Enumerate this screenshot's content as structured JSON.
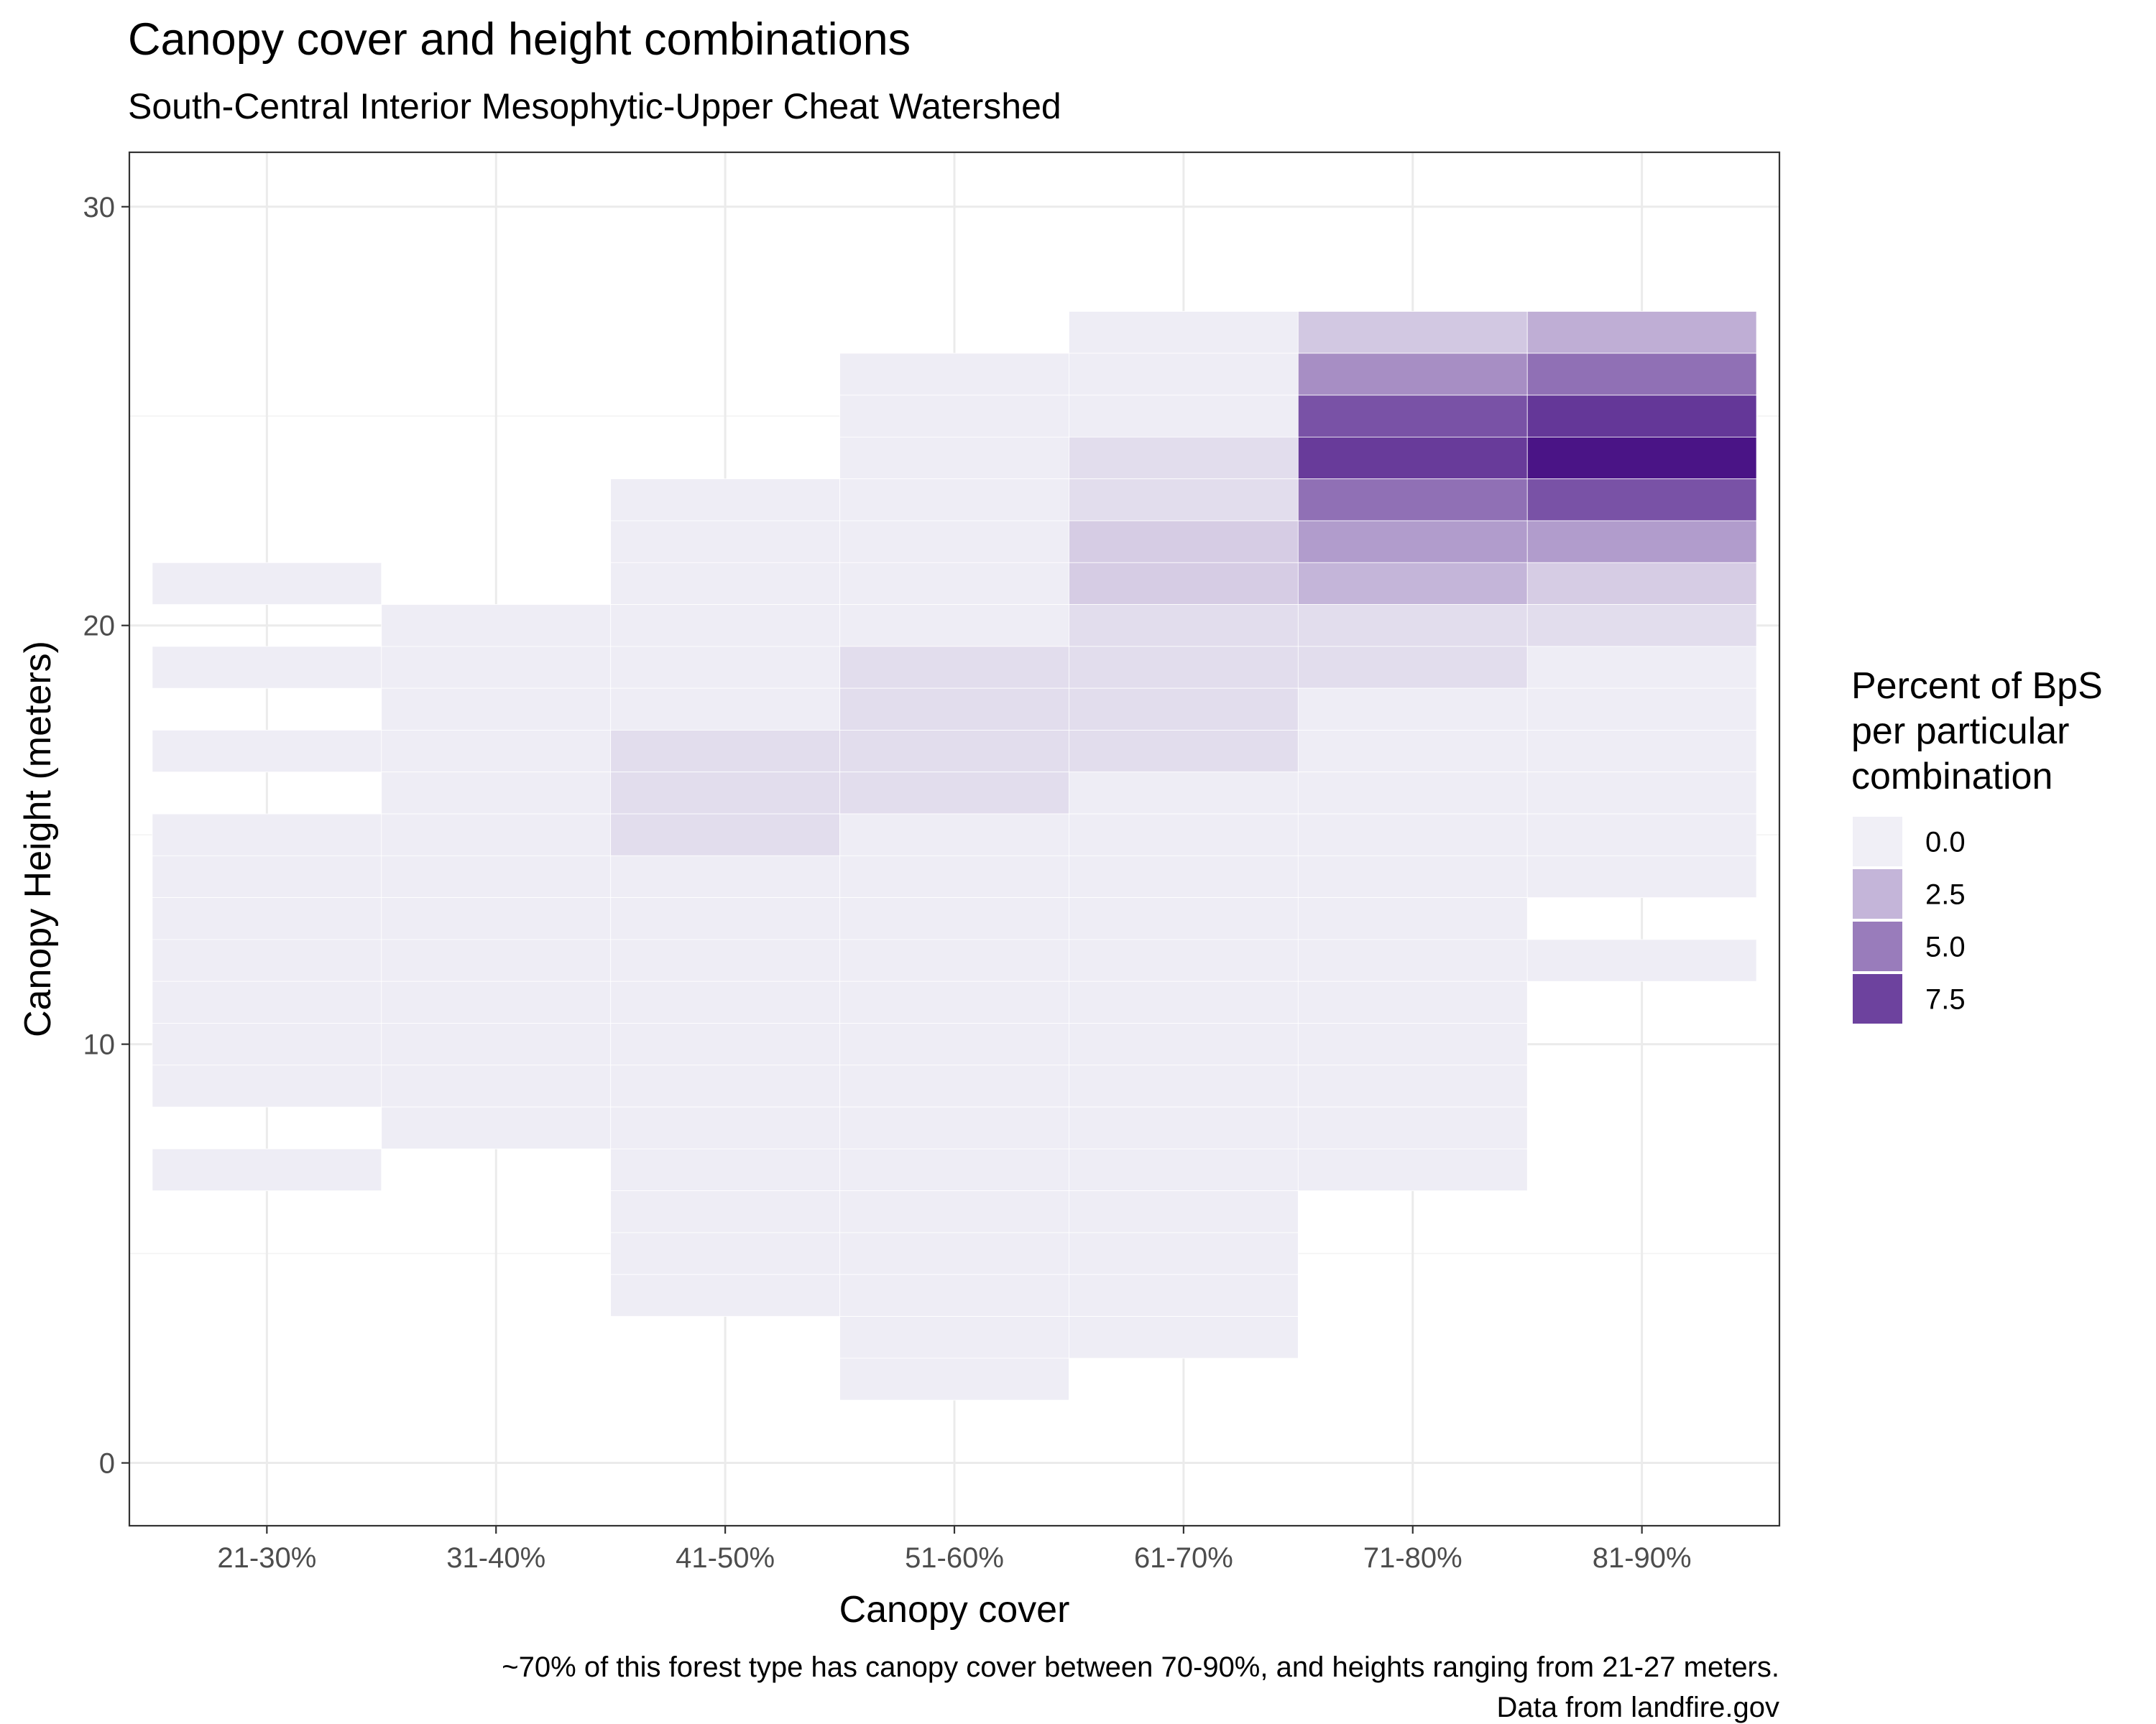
{
  "chart_data": {
    "type": "heatmap",
    "title": "Canopy cover and height combinations",
    "subtitle": "South-Central Interior Mesophytic-Upper Cheat Watershed",
    "xlabel": "Canopy cover",
    "ylabel": "Canopy Height (meters)",
    "categories": [
      "21-30%",
      "31-40%",
      "41-50%",
      "51-60%",
      "61-70%",
      "71-80%",
      "81-90%"
    ],
    "ylim": [
      -1.5,
      31.3
    ],
    "y_ticks": [
      0,
      10,
      20,
      30
    ],
    "grid": true,
    "color_scale": {
      "palette": "Purples",
      "low_color": "#f0eff6",
      "high_color": "#4a1486",
      "min": 0,
      "max": 9.5
    },
    "legend": {
      "title": [
        "Percent of BpS",
        "per particular",
        "combination"
      ],
      "position": "right",
      "breaks": [
        0.0,
        2.5,
        5.0,
        7.5
      ],
      "labels": [
        "0.0",
        "2.5",
        "5.0",
        "7.5"
      ]
    },
    "cells": [
      {
        "x": "21-30%",
        "y": 21,
        "value": 0.1
      },
      {
        "x": "21-30%",
        "y": 19,
        "value": 0.1
      },
      {
        "x": "21-30%",
        "y": 17,
        "value": 0.1
      },
      {
        "x": "21-30%",
        "y": 15,
        "value": 0.1
      },
      {
        "x": "21-30%",
        "y": 14,
        "value": 0.1
      },
      {
        "x": "21-30%",
        "y": 13,
        "value": 0.1
      },
      {
        "x": "21-30%",
        "y": 12,
        "value": 0.1
      },
      {
        "x": "21-30%",
        "y": 11,
        "value": 0.1
      },
      {
        "x": "21-30%",
        "y": 10,
        "value": 0.1
      },
      {
        "x": "21-30%",
        "y": 9,
        "value": 0.1
      },
      {
        "x": "21-30%",
        "y": 7,
        "value": 0.1
      },
      {
        "x": "31-40%",
        "y": 20,
        "value": 0.1
      },
      {
        "x": "31-40%",
        "y": 19,
        "value": 0.1
      },
      {
        "x": "31-40%",
        "y": 18,
        "value": 0.1
      },
      {
        "x": "31-40%",
        "y": 17,
        "value": 0.1
      },
      {
        "x": "31-40%",
        "y": 16,
        "value": 0.1
      },
      {
        "x": "31-40%",
        "y": 15,
        "value": 0.1
      },
      {
        "x": "31-40%",
        "y": 14,
        "value": 0.1
      },
      {
        "x": "31-40%",
        "y": 13,
        "value": 0.1
      },
      {
        "x": "31-40%",
        "y": 12,
        "value": 0.1
      },
      {
        "x": "31-40%",
        "y": 11,
        "value": 0.1
      },
      {
        "x": "31-40%",
        "y": 10,
        "value": 0.1
      },
      {
        "x": "31-40%",
        "y": 9,
        "value": 0.1
      },
      {
        "x": "31-40%",
        "y": 8,
        "value": 0.1
      },
      {
        "x": "41-50%",
        "y": 23,
        "value": 0.1
      },
      {
        "x": "41-50%",
        "y": 22,
        "value": 0.1
      },
      {
        "x": "41-50%",
        "y": 21,
        "value": 0.1
      },
      {
        "x": "41-50%",
        "y": 20,
        "value": 0.1
      },
      {
        "x": "41-50%",
        "y": 19,
        "value": 0.1
      },
      {
        "x": "41-50%",
        "y": 18,
        "value": 0.1
      },
      {
        "x": "41-50%",
        "y": 17,
        "value": 0.8
      },
      {
        "x": "41-50%",
        "y": 16,
        "value": 0.8
      },
      {
        "x": "41-50%",
        "y": 15,
        "value": 0.8
      },
      {
        "x": "41-50%",
        "y": 14,
        "value": 0.1
      },
      {
        "x": "41-50%",
        "y": 13,
        "value": 0.1
      },
      {
        "x": "41-50%",
        "y": 12,
        "value": 0.1
      },
      {
        "x": "41-50%",
        "y": 11,
        "value": 0.1
      },
      {
        "x": "41-50%",
        "y": 10,
        "value": 0.1
      },
      {
        "x": "41-50%",
        "y": 9,
        "value": 0.1
      },
      {
        "x": "41-50%",
        "y": 8,
        "value": 0.1
      },
      {
        "x": "41-50%",
        "y": 7,
        "value": 0.1
      },
      {
        "x": "41-50%",
        "y": 6,
        "value": 0.1
      },
      {
        "x": "41-50%",
        "y": 5,
        "value": 0.1
      },
      {
        "x": "41-50%",
        "y": 4,
        "value": 0.1
      },
      {
        "x": "51-60%",
        "y": 26,
        "value": 0.1
      },
      {
        "x": "51-60%",
        "y": 25,
        "value": 0.1
      },
      {
        "x": "51-60%",
        "y": 24,
        "value": 0.1
      },
      {
        "x": "51-60%",
        "y": 23,
        "value": 0.1
      },
      {
        "x": "51-60%",
        "y": 22,
        "value": 0.1
      },
      {
        "x": "51-60%",
        "y": 21,
        "value": 0.1
      },
      {
        "x": "51-60%",
        "y": 20,
        "value": 0.1
      },
      {
        "x": "51-60%",
        "y": 19,
        "value": 0.8
      },
      {
        "x": "51-60%",
        "y": 18,
        "value": 0.8
      },
      {
        "x": "51-60%",
        "y": 17,
        "value": 0.8
      },
      {
        "x": "51-60%",
        "y": 16,
        "value": 0.8
      },
      {
        "x": "51-60%",
        "y": 15,
        "value": 0.1
      },
      {
        "x": "51-60%",
        "y": 14,
        "value": 0.1
      },
      {
        "x": "51-60%",
        "y": 13,
        "value": 0.1
      },
      {
        "x": "51-60%",
        "y": 12,
        "value": 0.1
      },
      {
        "x": "51-60%",
        "y": 11,
        "value": 0.1
      },
      {
        "x": "51-60%",
        "y": 10,
        "value": 0.1
      },
      {
        "x": "51-60%",
        "y": 9,
        "value": 0.1
      },
      {
        "x": "51-60%",
        "y": 8,
        "value": 0.1
      },
      {
        "x": "51-60%",
        "y": 7,
        "value": 0.1
      },
      {
        "x": "51-60%",
        "y": 6,
        "value": 0.1
      },
      {
        "x": "51-60%",
        "y": 5,
        "value": 0.1
      },
      {
        "x": "51-60%",
        "y": 4,
        "value": 0.1
      },
      {
        "x": "51-60%",
        "y": 3,
        "value": 0.1
      },
      {
        "x": "51-60%",
        "y": 2,
        "value": 0.1
      },
      {
        "x": "61-70%",
        "y": 27,
        "value": 0.1
      },
      {
        "x": "61-70%",
        "y": 26,
        "value": 0.1
      },
      {
        "x": "61-70%",
        "y": 25,
        "value": 0.1
      },
      {
        "x": "61-70%",
        "y": 24,
        "value": 0.8
      },
      {
        "x": "61-70%",
        "y": 23,
        "value": 0.8
      },
      {
        "x": "61-70%",
        "y": 22,
        "value": 1.5
      },
      {
        "x": "61-70%",
        "y": 21,
        "value": 1.5
      },
      {
        "x": "61-70%",
        "y": 20,
        "value": 0.8
      },
      {
        "x": "61-70%",
        "y": 19,
        "value": 0.8
      },
      {
        "x": "61-70%",
        "y": 18,
        "value": 0.8
      },
      {
        "x": "61-70%",
        "y": 17,
        "value": 0.8
      },
      {
        "x": "61-70%",
        "y": 16,
        "value": 0.1
      },
      {
        "x": "61-70%",
        "y": 15,
        "value": 0.1
      },
      {
        "x": "61-70%",
        "y": 14,
        "value": 0.1
      },
      {
        "x": "61-70%",
        "y": 13,
        "value": 0.1
      },
      {
        "x": "61-70%",
        "y": 12,
        "value": 0.1
      },
      {
        "x": "61-70%",
        "y": 11,
        "value": 0.1
      },
      {
        "x": "61-70%",
        "y": 10,
        "value": 0.1
      },
      {
        "x": "61-70%",
        "y": 9,
        "value": 0.1
      },
      {
        "x": "61-70%",
        "y": 8,
        "value": 0.1
      },
      {
        "x": "61-70%",
        "y": 7,
        "value": 0.1
      },
      {
        "x": "61-70%",
        "y": 6,
        "value": 0.1
      },
      {
        "x": "61-70%",
        "y": 5,
        "value": 0.1
      },
      {
        "x": "61-70%",
        "y": 4,
        "value": 0.1
      },
      {
        "x": "61-70%",
        "y": 3,
        "value": 0.1
      },
      {
        "x": "71-80%",
        "y": 27,
        "value": 1.7
      },
      {
        "x": "71-80%",
        "y": 26,
        "value": 4.2
      },
      {
        "x": "71-80%",
        "y": 25,
        "value": 6.8
      },
      {
        "x": "71-80%",
        "y": 24,
        "value": 7.8
      },
      {
        "x": "71-80%",
        "y": 23,
        "value": 5.5
      },
      {
        "x": "71-80%",
        "y": 22,
        "value": 3.6
      },
      {
        "x": "71-80%",
        "y": 21,
        "value": 2.5
      },
      {
        "x": "71-80%",
        "y": 20,
        "value": 0.8
      },
      {
        "x": "71-80%",
        "y": 19,
        "value": 0.8
      },
      {
        "x": "71-80%",
        "y": 18,
        "value": 0.1
      },
      {
        "x": "71-80%",
        "y": 17,
        "value": 0.1
      },
      {
        "x": "71-80%",
        "y": 16,
        "value": 0.1
      },
      {
        "x": "71-80%",
        "y": 15,
        "value": 0.1
      },
      {
        "x": "71-80%",
        "y": 14,
        "value": 0.1
      },
      {
        "x": "71-80%",
        "y": 13,
        "value": 0.1
      },
      {
        "x": "71-80%",
        "y": 12,
        "value": 0.1
      },
      {
        "x": "71-80%",
        "y": 11,
        "value": 0.1
      },
      {
        "x": "71-80%",
        "y": 10,
        "value": 0.1
      },
      {
        "x": "71-80%",
        "y": 9,
        "value": 0.1
      },
      {
        "x": "71-80%",
        "y": 8,
        "value": 0.1
      },
      {
        "x": "71-80%",
        "y": 7,
        "value": 0.1
      },
      {
        "x": "81-90%",
        "y": 27,
        "value": 2.8
      },
      {
        "x": "81-90%",
        "y": 26,
        "value": 5.5
      },
      {
        "x": "81-90%",
        "y": 25,
        "value": 8.0
      },
      {
        "x": "81-90%",
        "y": 24,
        "value": 9.5
      },
      {
        "x": "81-90%",
        "y": 23,
        "value": 6.8
      },
      {
        "x": "81-90%",
        "y": 22,
        "value": 3.6
      },
      {
        "x": "81-90%",
        "y": 21,
        "value": 1.5
      },
      {
        "x": "81-90%",
        "y": 20,
        "value": 0.8
      },
      {
        "x": "81-90%",
        "y": 19,
        "value": 0.1
      },
      {
        "x": "81-90%",
        "y": 18,
        "value": 0.1
      },
      {
        "x": "81-90%",
        "y": 17,
        "value": 0.1
      },
      {
        "x": "81-90%",
        "y": 16,
        "value": 0.1
      },
      {
        "x": "81-90%",
        "y": 15,
        "value": 0.1
      },
      {
        "x": "81-90%",
        "y": 14,
        "value": 0.1
      },
      {
        "x": "81-90%",
        "y": 12,
        "value": 0.1
      }
    ],
    "caption": [
      "~70% of this forest type has canopy cover between 70-90%, and heights ranging from 21-27 meters.",
      "Data from landfire.gov"
    ]
  }
}
